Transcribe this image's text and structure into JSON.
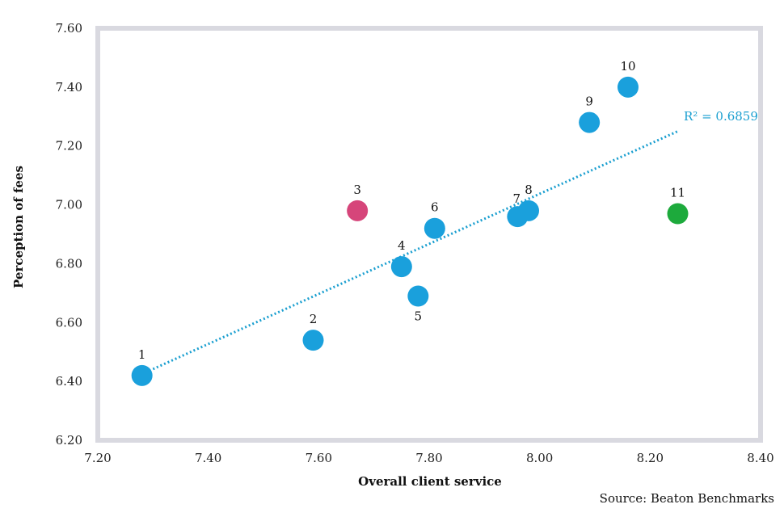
{
  "source": "Source: Beaton Benchmarks",
  "chart_data": {
    "type": "scatter",
    "title": "",
    "xlabel": "Overall client service",
    "ylabel": "Perception of fees",
    "xlim": [
      7.2,
      8.4
    ],
    "ylim": [
      6.2,
      7.6
    ],
    "x_ticks": [
      "7.20",
      "7.40",
      "7.60",
      "7.80",
      "8.00",
      "8.20",
      "8.40"
    ],
    "y_ticks": [
      "6.20",
      "6.40",
      "6.60",
      "6.80",
      "7.00",
      "7.20",
      "7.40",
      "7.60"
    ],
    "grid": false,
    "legend": "none",
    "points": [
      {
        "label": "1",
        "x": 7.28,
        "y": 6.42,
        "color": "#1aa0dc"
      },
      {
        "label": "2",
        "x": 7.59,
        "y": 6.54,
        "color": "#1aa0dc"
      },
      {
        "label": "3",
        "x": 7.67,
        "y": 6.98,
        "color": "#d6457a"
      },
      {
        "label": "4",
        "x": 7.75,
        "y": 6.79,
        "color": "#1aa0dc"
      },
      {
        "label": "5",
        "x": 7.78,
        "y": 6.69,
        "color": "#1aa0dc"
      },
      {
        "label": "6",
        "x": 7.81,
        "y": 6.92,
        "color": "#1aa0dc"
      },
      {
        "label": "7",
        "x": 7.96,
        "y": 6.96,
        "color": "#1aa0dc"
      },
      {
        "label": "8",
        "x": 7.98,
        "y": 6.98,
        "color": "#1aa0dc"
      },
      {
        "label": "9",
        "x": 8.09,
        "y": 7.28,
        "color": "#1aa0dc"
      },
      {
        "label": "10",
        "x": 8.16,
        "y": 7.4,
        "color": "#1aa0dc"
      },
      {
        "label": "11",
        "x": 8.25,
        "y": 6.97,
        "color": "#1daa3c"
      }
    ],
    "trendline": {
      "x": [
        7.28,
        8.25
      ],
      "y": [
        6.425,
        7.25
      ],
      "label": "R² = 0.6859",
      "color": "#1a9fd0",
      "style": "dotted"
    },
    "colors": {
      "frame": "#d9d9e0",
      "point_default": "#1aa0dc",
      "point_highlight_low": "#d6457a",
      "point_highlight_high": "#1daa3c",
      "trendline": "#1a9fd0"
    }
  }
}
